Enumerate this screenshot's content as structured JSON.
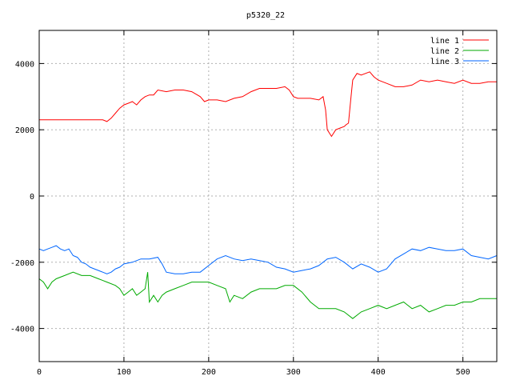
{
  "chart_data": {
    "type": "line",
    "title": "p5320_22",
    "xlabel": "",
    "ylabel": "",
    "xlim": [
      0,
      540
    ],
    "ylim": [
      -5000,
      5000
    ],
    "x_ticks": [
      0,
      100,
      200,
      300,
      400,
      500
    ],
    "x_tick_labels": [
      "0",
      "100",
      "200",
      "300",
      "400",
      "500"
    ],
    "y_ticks": [
      4000,
      2000,
      0,
      -2000,
      -4000
    ],
    "y_tick_labels": [
      "4000",
      "2000",
      "0",
      "-2000",
      "-4000"
    ],
    "grid": true,
    "legend_position": "top-right",
    "series": [
      {
        "name": "line 1",
        "color": "#ff0000",
        "x": [
          0,
          20,
          40,
          60,
          75,
          80,
          85,
          90,
          95,
          100,
          105,
          110,
          115,
          120,
          125,
          130,
          135,
          140,
          150,
          160,
          170,
          180,
          190,
          195,
          200,
          210,
          220,
          230,
          240,
          250,
          260,
          270,
          280,
          290,
          295,
          300,
          305,
          310,
          320,
          330,
          335,
          338,
          340,
          345,
          350,
          355,
          360,
          362,
          365,
          368,
          370,
          375,
          380,
          390,
          395,
          400,
          410,
          420,
          430,
          440,
          450,
          460,
          470,
          480,
          490,
          500,
          510,
          520,
          530,
          540
        ],
        "y": [
          2300,
          2300,
          2300,
          2300,
          2300,
          2250,
          2350,
          2500,
          2650,
          2750,
          2800,
          2850,
          2750,
          2900,
          3000,
          3050,
          3050,
          3200,
          3150,
          3200,
          3200,
          3150,
          3000,
          2850,
          2900,
          2900,
          2850,
          2950,
          3000,
          3150,
          3250,
          3250,
          3250,
          3300,
          3200,
          3000,
          2950,
          2950,
          2950,
          2900,
          3000,
          2600,
          2000,
          1800,
          2000,
          2050,
          2100,
          2150,
          2200,
          3000,
          3500,
          3700,
          3650,
          3750,
          3600,
          3500,
          3400,
          3300,
          3300,
          3350,
          3500,
          3450,
          3500,
          3450,
          3400,
          3500,
          3400,
          3400,
          3450,
          3450
        ]
      },
      {
        "name": "line 2",
        "color": "#00aa00",
        "x": [
          0,
          5,
          10,
          15,
          20,
          30,
          40,
          50,
          60,
          70,
          80,
          90,
          95,
          100,
          105,
          110,
          115,
          120,
          125,
          128,
          130,
          135,
          140,
          145,
          150,
          160,
          170,
          180,
          190,
          200,
          210,
          220,
          225,
          230,
          240,
          250,
          260,
          270,
          280,
          290,
          300,
          310,
          320,
          330,
          340,
          350,
          360,
          370,
          380,
          390,
          400,
          410,
          420,
          430,
          440,
          450,
          460,
          470,
          480,
          490,
          500,
          510,
          520,
          530,
          540
        ],
        "y": [
          -2500,
          -2600,
          -2800,
          -2600,
          -2500,
          -2400,
          -2300,
          -2400,
          -2400,
          -2500,
          -2600,
          -2700,
          -2800,
          -3000,
          -2900,
          -2800,
          -3000,
          -2900,
          -2800,
          -2300,
          -3200,
          -3000,
          -3200,
          -3000,
          -2900,
          -2800,
          -2700,
          -2600,
          -2600,
          -2600,
          -2700,
          -2800,
          -3200,
          -3000,
          -3100,
          -2900,
          -2800,
          -2800,
          -2800,
          -2700,
          -2700,
          -2900,
          -3200,
          -3400,
          -3400,
          -3400,
          -3500,
          -3700,
          -3500,
          -3400,
          -3300,
          -3400,
          -3300,
          -3200,
          -3400,
          -3300,
          -3500,
          -3400,
          -3300,
          -3300,
          -3200,
          -3200,
          -3100,
          -3100,
          -3100
        ]
      },
      {
        "name": "line 3",
        "color": "#0066ff",
        "x": [
          0,
          5,
          10,
          15,
          20,
          25,
          30,
          35,
          40,
          45,
          50,
          55,
          60,
          65,
          70,
          75,
          80,
          85,
          90,
          95,
          100,
          110,
          120,
          130,
          140,
          145,
          150,
          160,
          170,
          180,
          190,
          200,
          210,
          220,
          230,
          240,
          250,
          260,
          270,
          280,
          290,
          300,
          310,
          320,
          330,
          340,
          350,
          360,
          370,
          380,
          390,
          400,
          410,
          420,
          430,
          440,
          450,
          460,
          470,
          480,
          490,
          500,
          510,
          520,
          530,
          540
        ],
        "y": [
          -1600,
          -1650,
          -1600,
          -1550,
          -1500,
          -1600,
          -1650,
          -1600,
          -1800,
          -1850,
          -2000,
          -2050,
          -2150,
          -2200,
          -2250,
          -2300,
          -2350,
          -2300,
          -2200,
          -2150,
          -2050,
          -2000,
          -1900,
          -1900,
          -1850,
          -2050,
          -2300,
          -2350,
          -2350,
          -2300,
          -2300,
          -2100,
          -1900,
          -1800,
          -1900,
          -1950,
          -1900,
          -1950,
          -2000,
          -2150,
          -2200,
          -2300,
          -2250,
          -2200,
          -2100,
          -1900,
          -1850,
          -2000,
          -2200,
          -2050,
          -2150,
          -2300,
          -2200,
          -1900,
          -1750,
          -1600,
          -1650,
          -1550,
          -1600,
          -1650,
          -1650,
          -1600,
          -1800,
          -1850,
          -1900,
          -1800
        ]
      }
    ]
  }
}
